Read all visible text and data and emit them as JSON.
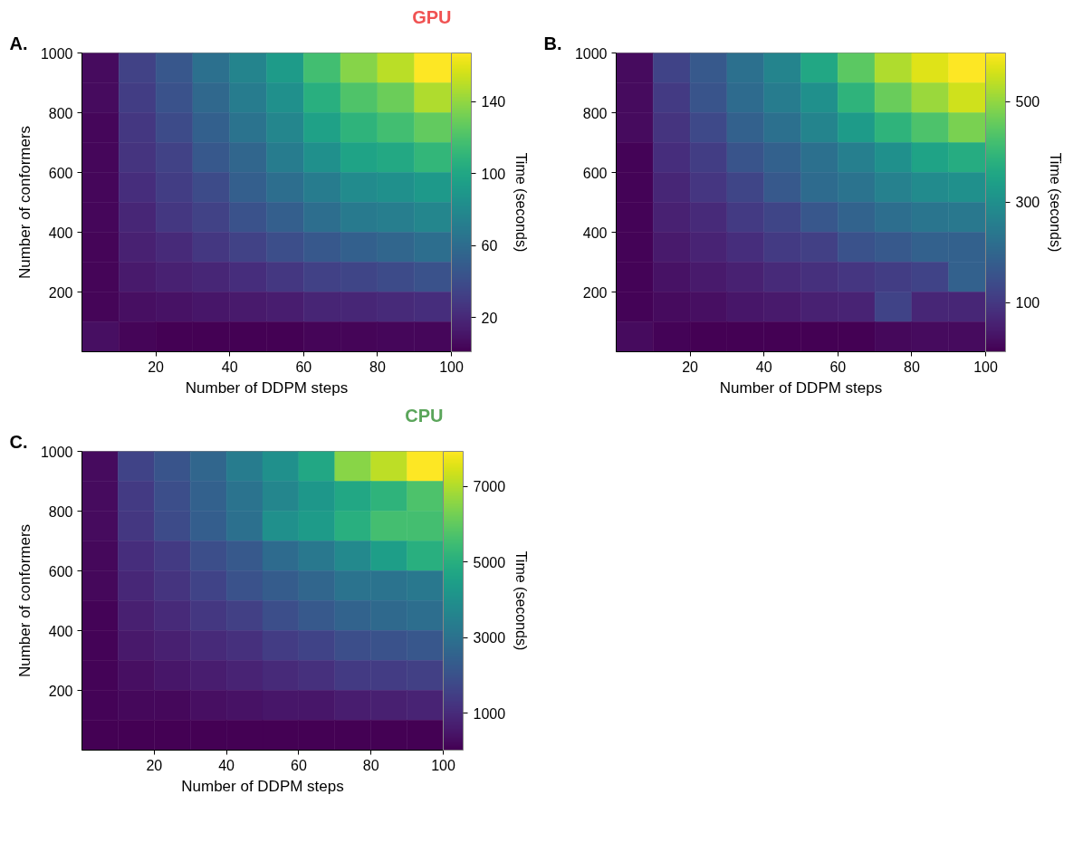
{
  "chart_data": [
    {
      "type": "heatmap",
      "title": "GPU",
      "annotations": [
        "A."
      ],
      "xlabel": "Number of DDPM steps",
      "ylabel": "Number of conformers",
      "clabel": "Time (seconds)",
      "x": [
        5,
        15,
        25,
        35,
        45,
        55,
        65,
        75,
        85,
        95
      ],
      "y": [
        950,
        850,
        750,
        650,
        550,
        450,
        350,
        250,
        150,
        50
      ],
      "xlim": [
        0,
        100
      ],
      "xticks": [
        20,
        40,
        60,
        80,
        100
      ],
      "ylim": [
        0,
        1000
      ],
      "yticks": [
        200,
        400,
        600,
        800,
        1000
      ],
      "clim": [
        1,
        167
      ],
      "cticks": [
        20,
        60,
        100,
        140
      ],
      "cells": [
        [
          6,
          34,
          46,
          62,
          76,
          92,
          117,
          137,
          150,
          167
        ],
        [
          6,
          31,
          43,
          57,
          71,
          84,
          106,
          121,
          130,
          147
        ],
        [
          4,
          28,
          39,
          52,
          64,
          77,
          96,
          109,
          117,
          127
        ],
        [
          4,
          26,
          34,
          47,
          56,
          71,
          84,
          97,
          101,
          111
        ],
        [
          4,
          23,
          31,
          39,
          51,
          61,
          71,
          81,
          84,
          91
        ],
        [
          4,
          19,
          28,
          34,
          43,
          51,
          61,
          69,
          72,
          77
        ],
        [
          3,
          16,
          21,
          28,
          34,
          41,
          47,
          52,
          56,
          61
        ],
        [
          3,
          13,
          16,
          19,
          23,
          28,
          33,
          36,
          39,
          43
        ],
        [
          3,
          8,
          9,
          11,
          13,
          14,
          18,
          19,
          21,
          23
        ],
        [
          8,
          3,
          1,
          1,
          1,
          1,
          3,
          3,
          4,
          4
        ]
      ]
    },
    {
      "type": "heatmap",
      "annotations": [
        "B."
      ],
      "xlabel": "Number of DDPM steps",
      "clabel": "Time (seconds)",
      "x": [
        5,
        15,
        25,
        35,
        45,
        55,
        65,
        75,
        85,
        95
      ],
      "y": [
        950,
        850,
        750,
        650,
        550,
        450,
        350,
        250,
        150,
        50
      ],
      "xlim": [
        0,
        100
      ],
      "xticks": [
        20,
        40,
        60,
        80,
        100
      ],
      "ylim": [
        0,
        1000
      ],
      "yticks": [
        200,
        400,
        600,
        800,
        1000
      ],
      "clim": [
        2,
        597
      ],
      "cticks": [
        100,
        300,
        500
      ],
      "cells": [
        [
          20,
          121,
          169,
          222,
          270,
          359,
          448,
          526,
          567,
          597
        ],
        [
          20,
          103,
          157,
          210,
          252,
          300,
          389,
          460,
          508,
          555
        ],
        [
          20,
          91,
          133,
          186,
          222,
          270,
          329,
          389,
          430,
          478
        ],
        [
          8,
          79,
          109,
          157,
          186,
          222,
          258,
          300,
          347,
          371
        ],
        [
          8,
          67,
          97,
          127,
          169,
          210,
          228,
          264,
          288,
          300
        ],
        [
          8,
          56,
          73,
          103,
          127,
          163,
          192,
          216,
          234,
          240
        ],
        [
          8,
          44,
          62,
          79,
          103,
          115,
          151,
          169,
          186,
          186
        ],
        [
          8,
          32,
          44,
          56,
          73,
          85,
          97,
          109,
          121,
          186
        ],
        [
          8,
          20,
          26,
          38,
          44,
          56,
          62,
          121,
          67,
          67
        ],
        [
          20,
          8,
          2,
          2,
          2,
          2,
          2,
          14,
          20,
          20
        ]
      ]
    },
    {
      "type": "heatmap",
      "title": "CPU",
      "annotations": [
        "C."
      ],
      "xlabel": "Number of DDPM steps",
      "ylabel": "Number of conformers",
      "clabel": "Time (seconds)",
      "x": [
        5,
        15,
        25,
        35,
        45,
        55,
        65,
        75,
        85,
        95
      ],
      "y": [
        950,
        850,
        750,
        650,
        550,
        450,
        350,
        250,
        150,
        50
      ],
      "xlim": [
        0,
        100
      ],
      "xticks": [
        20,
        40,
        60,
        80,
        100
      ],
      "ylim": [
        0,
        1000
      ],
      "yticks": [
        200,
        400,
        600,
        800,
        1000
      ],
      "clim": [
        20,
        7930
      ],
      "cticks": [
        1000,
        3000,
        5000,
        7000
      ],
      "cells": [
        [
          260,
          1600,
          2080,
          2630,
          3340,
          3980,
          4770,
          6510,
          7140,
          7930
        ],
        [
          260,
          1370,
          1920,
          2470,
          3030,
          3660,
          4210,
          4770,
          5160,
          5720
        ],
        [
          260,
          1290,
          1840,
          2390,
          2950,
          3980,
          4370,
          5000,
          5560,
          5560
        ],
        [
          180,
          1050,
          1370,
          1920,
          2230,
          2790,
          3180,
          3740,
          4450,
          5000
        ],
        [
          180,
          890,
          1210,
          1600,
          2000,
          2310,
          2630,
          3030,
          3030,
          3180
        ],
        [
          100,
          730,
          970,
          1290,
          1520,
          1920,
          2230,
          2550,
          2710,
          2870
        ],
        [
          100,
          570,
          730,
          970,
          1130,
          1440,
          1600,
          1920,
          2000,
          2160
        ],
        [
          100,
          340,
          490,
          650,
          810,
          970,
          1130,
          1370,
          1440,
          1520
        ],
        [
          100,
          180,
          180,
          340,
          420,
          490,
          490,
          650,
          730,
          810
        ],
        [
          20,
          20,
          20,
          20,
          20,
          20,
          20,
          20,
          20,
          20
        ]
      ]
    }
  ]
}
